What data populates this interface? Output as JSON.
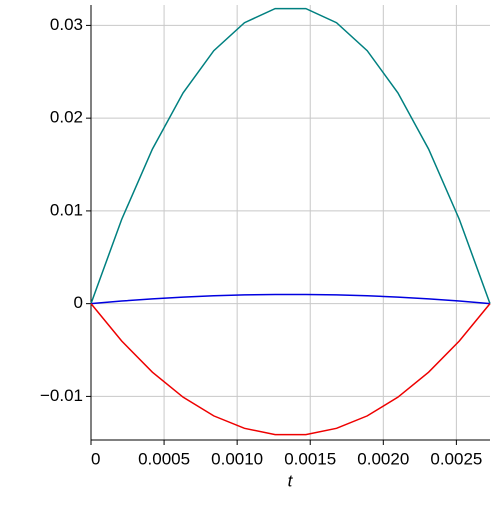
{
  "chart_data": {
    "type": "line",
    "x_label": "t",
    "x": [
      0,
      0.00021,
      0.00042,
      0.00063,
      0.00084,
      0.00105,
      0.00126,
      0.00147,
      0.00168,
      0.00189,
      0.0021,
      0.00231,
      0.00252,
      0.00273
    ],
    "series": [
      {
        "color": "#008080",
        "values": [
          0,
          0.00909,
          0.01666,
          0.02272,
          0.02727,
          0.03029,
          0.03181,
          0.03181,
          0.03029,
          0.02727,
          0.02272,
          0.01666,
          0.00909,
          0
        ]
      },
      {
        "color": "#0000e0",
        "values": [
          0,
          0.00028,
          0.00052,
          0.00071,
          0.00085,
          0.00095,
          0.00099,
          0.00099,
          0.00095,
          0.00085,
          0.00071,
          0.00052,
          0.00028,
          0
        ]
      },
      {
        "color": "#ee0000",
        "values": [
          0,
          -0.00403,
          -0.00739,
          -0.01008,
          -0.0121,
          -0.01344,
          -0.01412,
          -0.01412,
          -0.01344,
          -0.0121,
          -0.01008,
          -0.00739,
          -0.00403,
          0
        ]
      }
    ],
    "xlim": [
      0,
      0.00273
    ],
    "ylim": [
      -0.0147,
      0.0322
    ],
    "xticks": [
      0,
      0.0005,
      {
        "value": 0.001,
        "label": "0.0010"
      },
      0.0015,
      {
        "value": 0.002,
        "label": "0.0020"
      },
      0.0025
    ],
    "yticks": [
      {
        "value": -0.01,
        "label": "−0.01"
      },
      0,
      0.01,
      0.02,
      0.03
    ],
    "grid": true
  }
}
